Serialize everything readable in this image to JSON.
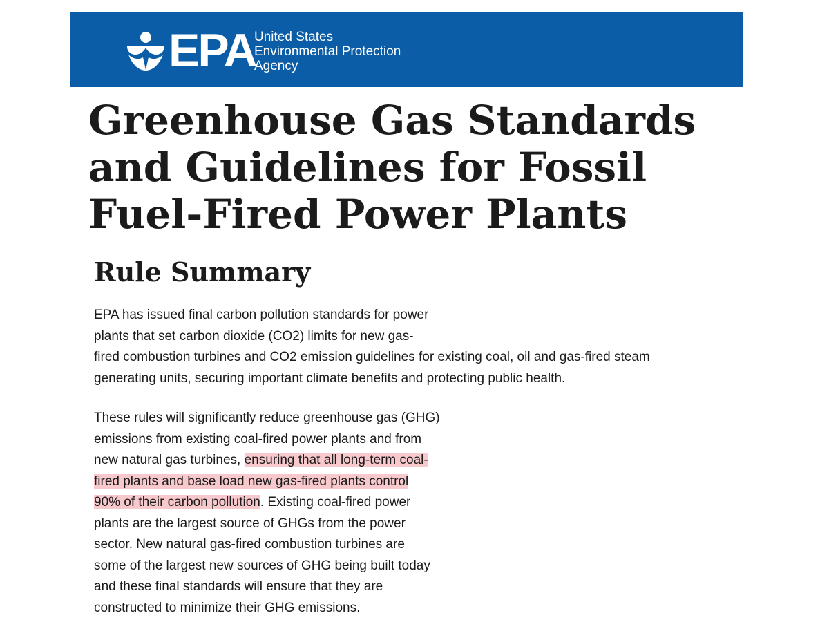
{
  "header": {
    "logo_text": "EPA",
    "agency_lines": [
      "United States",
      "Environmental Protection",
      "Agency"
    ],
    "background_color": "#0a5da6",
    "logo_icon": "epa-flower-logo-icon"
  },
  "page_title": "Greenhouse Gas Standards and Guidelines for Fossil Fuel-Fired Power Plants",
  "section_title": "Rule Summary",
  "paragraph1": {
    "lines": [
      "EPA has issued final carbon pollution standards for power",
      "plants that set carbon dioxide (CO2)  limits for new gas-",
      "fired combustion turbines and CO2 emission guidelines for existing coal, oil and gas-fired steam",
      "generating units, securing important climate benefits and protecting public health."
    ]
  },
  "paragraph2": {
    "highlight_color": "#f7c8cc",
    "lines": [
      "These rules will significantly reduce greenhouse gas (GHG)",
      "emissions from existing coal-fired power plants and from",
      "plants are the largest source of GHGs from the power",
      "sector. New natural gas-fired combustion turbines are",
      "some of the largest new sources of GHG being built today",
      "and these final standards will ensure that they are",
      "constructed to minimize their GHG emissions."
    ],
    "line3_plain": "new natural gas turbines, ",
    "line3_highlight": "ensuring that all long-term coal-",
    "line4_highlight": "fired plants and base load new gas-fired plants control",
    "line5_highlight": "90% of their carbon pollution",
    "line5_plain": ". Existing coal-fired power"
  }
}
